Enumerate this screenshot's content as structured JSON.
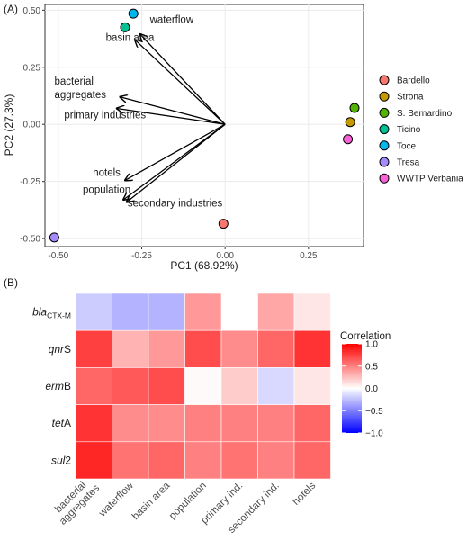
{
  "panel_a_label": "(A)",
  "panel_b_label": "(B)",
  "chart_data": [
    {
      "type": "scatter",
      "title": "",
      "xlabel": "PC1 (68.92%)",
      "ylabel": "PC2 (27.3%)",
      "xlim": [
        -0.54,
        0.415
      ],
      "ylim": [
        -0.535,
        0.525
      ],
      "x_ticks": [
        -0.5,
        -0.25,
        0.0,
        0.25
      ],
      "x_tick_labels": [
        "-0.50",
        "-0.25",
        "0.00",
        "0.25"
      ],
      "y_ticks": [
        -0.5,
        -0.25,
        0.0,
        0.25,
        0.5
      ],
      "y_tick_labels": [
        "-0.50",
        "-0.25",
        "0.00",
        "0.25",
        "0.50"
      ],
      "grid": true,
      "legend_position": "right",
      "points": [
        {
          "name": "Bardello",
          "x": -0.005,
          "y": -0.435,
          "color": "#F8766D"
        },
        {
          "name": "Strona",
          "x": 0.375,
          "y": 0.01,
          "color": "#C49A00"
        },
        {
          "name": "S. Bernardino",
          "x": 0.388,
          "y": 0.072,
          "color": "#53B400"
        },
        {
          "name": "Ticino",
          "x": -0.3,
          "y": 0.425,
          "color": "#00C094"
        },
        {
          "name": "Toce",
          "x": -0.275,
          "y": 0.485,
          "color": "#00B6EB"
        },
        {
          "name": "Tresa",
          "x": -0.512,
          "y": -0.495,
          "color": "#A58AFF"
        },
        {
          "name": "WWTP Verbania",
          "x": 0.368,
          "y": -0.065,
          "color": "#FB61D7"
        }
      ],
      "arrows": [
        {
          "label": "waterflow",
          "x": -0.255,
          "y": 0.395,
          "label_x": -0.16,
          "label_y": 0.445
        },
        {
          "label": "basin area",
          "x": -0.27,
          "y": 0.37,
          "label_x": -0.285,
          "label_y": 0.365
        },
        {
          "label": "bacterial\naggregates",
          "x": -0.315,
          "y": 0.12,
          "label_x": -0.42,
          "label_y": 0.175
        },
        {
          "label": "primary industries",
          "x": -0.325,
          "y": 0.07,
          "label_x": -0.36,
          "label_y": 0.027
        },
        {
          "label": "hotels",
          "x": -0.3,
          "y": -0.245,
          "label_x": -0.355,
          "label_y": -0.225
        },
        {
          "label": "population",
          "x": -0.305,
          "y": -0.33,
          "label_x": -0.355,
          "label_y": -0.3
        },
        {
          "label": "secondary industries",
          "x": -0.295,
          "y": -0.34,
          "label_x": -0.15,
          "label_y": -0.36
        }
      ]
    },
    {
      "type": "heatmap",
      "title": "",
      "rows": [
        {
          "base": "bla",
          "sub": "CTX-M",
          "suffix": ""
        },
        {
          "base": "qnr",
          "sub": "",
          "suffix": "S"
        },
        {
          "base": "erm",
          "sub": "",
          "suffix": "B"
        },
        {
          "base": "tet",
          "sub": "",
          "suffix": "A"
        },
        {
          "base": "sul",
          "sub": "",
          "suffix": "2"
        }
      ],
      "columns": [
        "bacterial\naggregates",
        "waterflow",
        "basin area",
        "population",
        "primary ind.",
        "secondary ind.",
        "hotels"
      ],
      "values": [
        [
          -0.2,
          -0.3,
          -0.3,
          0.4,
          null,
          0.35,
          0.1
        ],
        [
          0.75,
          0.3,
          0.4,
          0.7,
          0.45,
          0.6,
          0.8
        ],
        [
          0.6,
          0.65,
          0.7,
          0.02,
          0.2,
          -0.15,
          0.1
        ],
        [
          0.8,
          0.45,
          0.45,
          0.5,
          0.5,
          0.5,
          0.6
        ],
        [
          0.85,
          0.55,
          0.6,
          0.5,
          0.55,
          0.5,
          0.6
        ]
      ],
      "colorbar": {
        "title": "Correlation",
        "min": -1.0,
        "max": 1.0,
        "ticks": [
          1.0,
          0.5,
          0.0,
          -0.5,
          -1.0
        ],
        "tick_labels": [
          "1.0",
          "0.5",
          "0.0",
          "−0.5",
          "−1.0"
        ],
        "low_color": "#0000FF",
        "mid_color": "#FFFFFF",
        "high_color": "#FF0000"
      }
    }
  ]
}
